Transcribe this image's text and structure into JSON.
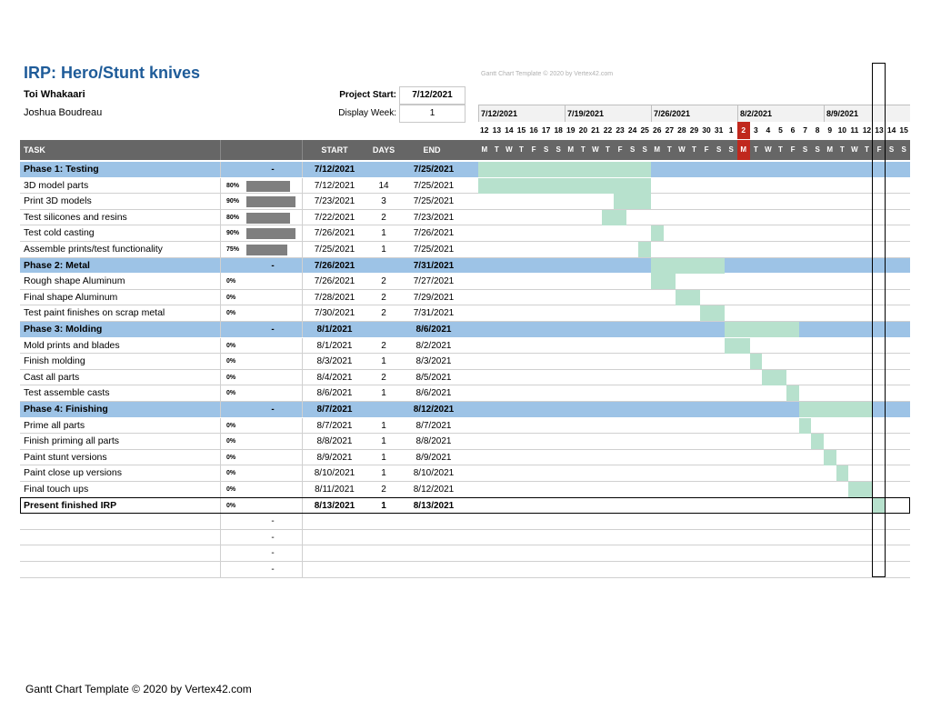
{
  "header": {
    "title": "IRP: Hero/Stunt knives",
    "person1": "Toi Whakaari",
    "person2": "Joshua Boudreau",
    "project_start_label": "Project Start:",
    "project_start_value": "7/12/2021",
    "display_week_label": "Display Week:",
    "display_week_value": "1",
    "watermark": "Gantt Chart Template © 2020 by Vertex42.com"
  },
  "footer": "Gantt Chart Template © 2020 by Vertex42.com",
  "columns": {
    "task": "TASK",
    "start": "START",
    "days": "DAYS",
    "end": "END"
  },
  "weeks": [
    "7/12/2021",
    "7/19/2021",
    "7/26/2021",
    "8/2/2021",
    "8/9/2021"
  ],
  "day_numbers": [
    "12",
    "13",
    "14",
    "15",
    "16",
    "17",
    "18",
    "19",
    "20",
    "21",
    "22",
    "23",
    "24",
    "25",
    "26",
    "27",
    "28",
    "29",
    "30",
    "31",
    "1",
    "2",
    "3",
    "4",
    "5",
    "6",
    "7",
    "8",
    "9",
    "10",
    "11",
    "12",
    "13",
    "14",
    "15"
  ],
  "day_letters": [
    "M",
    "T",
    "W",
    "T",
    "F",
    "S",
    "S",
    "M",
    "T",
    "W",
    "T",
    "F",
    "S",
    "S",
    "M",
    "T",
    "W",
    "T",
    "F",
    "S",
    "S",
    "M",
    "T",
    "W",
    "T",
    "F",
    "S",
    "S",
    "M",
    "T",
    "W",
    "T",
    "F",
    "S",
    "S"
  ],
  "today_index": 21,
  "colors": {
    "title": "#1f5c99",
    "phase_row": "#9dc3e6",
    "gantt_bar": "#b7e1cd",
    "header_bg": "#666666",
    "today": "#c0281d"
  },
  "tasks": [
    {
      "name": "Phase 1: Testing",
      "type": "phase",
      "pct": "-",
      "start": "7/12/2021",
      "days": "",
      "end": "7/25/2021",
      "s": 0,
      "d": 14
    },
    {
      "name": "3D model parts",
      "type": "task",
      "pct": "80%",
      "progress": 0.8,
      "start": "7/12/2021",
      "days": "14",
      "end": "7/25/2021",
      "s": 0,
      "d": 14
    },
    {
      "name": "Print 3D models",
      "type": "task",
      "pct": "90%",
      "progress": 0.9,
      "start": "7/23/2021",
      "days": "3",
      "end": "7/25/2021",
      "s": 11,
      "d": 3
    },
    {
      "name": "Test silicones and resins",
      "type": "task",
      "pct": "80%",
      "progress": 0.8,
      "start": "7/22/2021",
      "days": "2",
      "end": "7/23/2021",
      "s": 10,
      "d": 2
    },
    {
      "name": "Test cold casting",
      "type": "task",
      "pct": "90%",
      "progress": 0.9,
      "start": "7/26/2021",
      "days": "1",
      "end": "7/26/2021",
      "s": 14,
      "d": 1
    },
    {
      "name": "Assemble prints/test functionality",
      "type": "task",
      "pct": "75%",
      "progress": 0.75,
      "start": "7/25/2021",
      "days": "1",
      "end": "7/25/2021",
      "s": 13,
      "d": 1
    },
    {
      "name": "Phase 2: Metal",
      "type": "phase",
      "pct": "-",
      "start": "7/26/2021",
      "days": "",
      "end": "7/31/2021",
      "s": 14,
      "d": 6
    },
    {
      "name": "Rough shape Aluminum",
      "type": "task",
      "pct": "0%",
      "progress": 0,
      "start": "7/26/2021",
      "days": "2",
      "end": "7/27/2021",
      "s": 14,
      "d": 2
    },
    {
      "name": "Final shape Aluminum",
      "type": "task",
      "pct": "0%",
      "progress": 0,
      "start": "7/28/2021",
      "days": "2",
      "end": "7/29/2021",
      "s": 16,
      "d": 2
    },
    {
      "name": "Test paint finishes on scrap metal",
      "type": "task",
      "pct": "0%",
      "progress": 0,
      "start": "7/30/2021",
      "days": "2",
      "end": "7/31/2021",
      "s": 18,
      "d": 2
    },
    {
      "name": "Phase 3: Molding",
      "type": "phase",
      "pct": "-",
      "start": "8/1/2021",
      "days": "",
      "end": "8/6/2021",
      "s": 20,
      "d": 6
    },
    {
      "name": "Mold prints and blades",
      "type": "task",
      "pct": "0%",
      "progress": 0,
      "start": "8/1/2021",
      "days": "2",
      "end": "8/2/2021",
      "s": 20,
      "d": 2
    },
    {
      "name": "Finish molding",
      "type": "task",
      "pct": "0%",
      "progress": 0,
      "start": "8/3/2021",
      "days": "1",
      "end": "8/3/2021",
      "s": 22,
      "d": 1
    },
    {
      "name": "Cast all parts",
      "type": "task",
      "pct": "0%",
      "progress": 0,
      "start": "8/4/2021",
      "days": "2",
      "end": "8/5/2021",
      "s": 23,
      "d": 2
    },
    {
      "name": "Test assemble casts",
      "type": "task",
      "pct": "0%",
      "progress": 0,
      "start": "8/6/2021",
      "days": "1",
      "end": "8/6/2021",
      "s": 25,
      "d": 1
    },
    {
      "name": "Phase 4: Finishing",
      "type": "phase",
      "pct": "-",
      "start": "8/7/2021",
      "days": "",
      "end": "8/12/2021",
      "s": 26,
      "d": 6
    },
    {
      "name": "Prime all parts",
      "type": "task",
      "pct": "0%",
      "progress": 0,
      "start": "8/7/2021",
      "days": "1",
      "end": "8/7/2021",
      "s": 26,
      "d": 1
    },
    {
      "name": "Finish priming all parts",
      "type": "task",
      "pct": "0%",
      "progress": 0,
      "start": "8/8/2021",
      "days": "1",
      "end": "8/8/2021",
      "s": 27,
      "d": 1
    },
    {
      "name": "Paint stunt versions",
      "type": "task",
      "pct": "0%",
      "progress": 0,
      "start": "8/9/2021",
      "days": "1",
      "end": "8/9/2021",
      "s": 28,
      "d": 1
    },
    {
      "name": "Paint close up versions",
      "type": "task",
      "pct": "0%",
      "progress": 0,
      "start": "8/10/2021",
      "days": "1",
      "end": "8/10/2021",
      "s": 29,
      "d": 1
    },
    {
      "name": "Final touch ups",
      "type": "task",
      "pct": "0%",
      "progress": 0,
      "start": "8/11/2021",
      "days": "2",
      "end": "8/12/2021",
      "s": 30,
      "d": 2
    },
    {
      "name": "Present finished IRP",
      "type": "final",
      "pct": "0%",
      "progress": 0,
      "start": "8/13/2021",
      "days": "1",
      "end": "8/13/2021",
      "s": 32,
      "d": 1
    },
    {
      "name": "",
      "type": "empty",
      "pct": "-"
    },
    {
      "name": "",
      "type": "empty",
      "pct": "-"
    },
    {
      "name": "",
      "type": "empty",
      "pct": "-"
    },
    {
      "name": "",
      "type": "empty",
      "pct": "-"
    }
  ]
}
